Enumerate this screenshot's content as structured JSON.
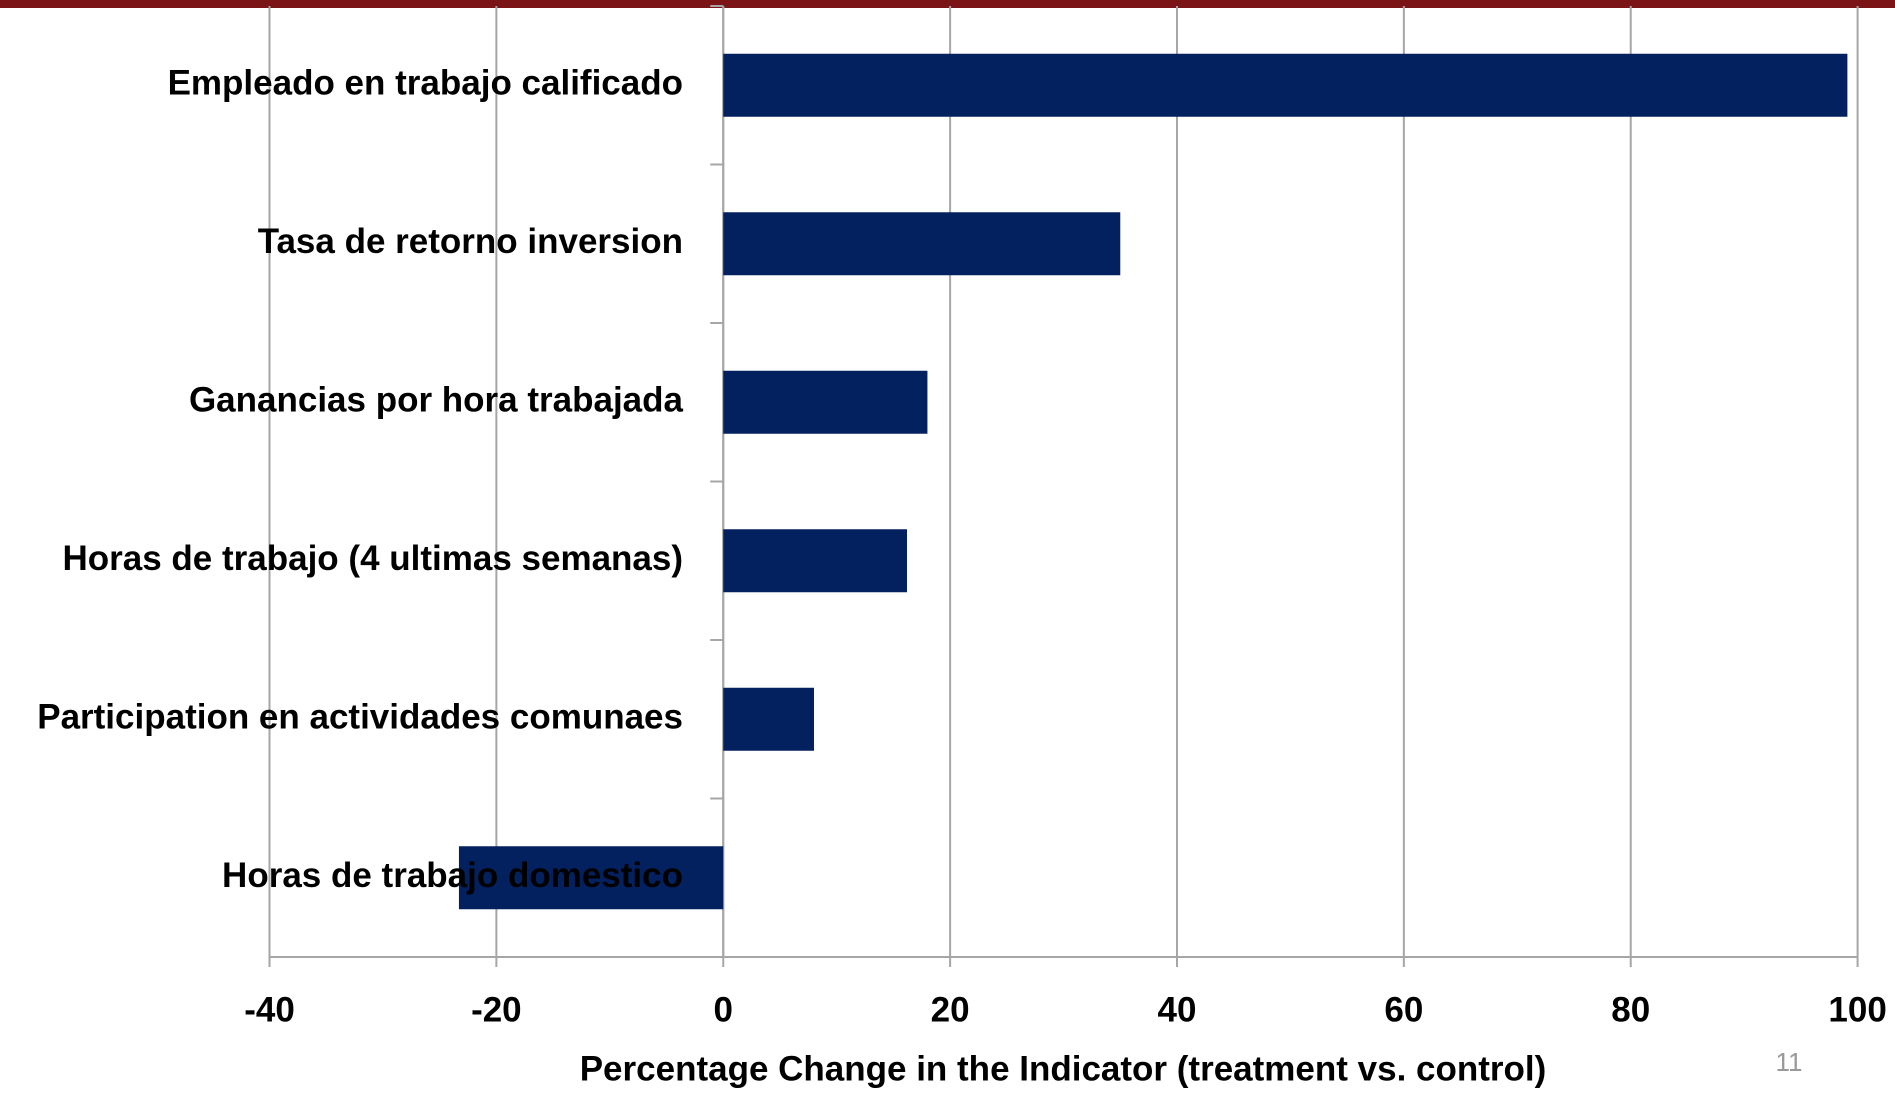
{
  "chart_data": {
    "type": "bar",
    "orientation": "horizontal",
    "categories": [
      "Empleado en trabajo calificado",
      "Tasa de retorno inversion",
      "Ganancias por hora trabajada",
      "Horas de trabajo (4 ultimas semanas)",
      "Participation en actividades comunaes",
      "Horas de trabajo domestico"
    ],
    "values": [
      99.1,
      35.0,
      18.0,
      16.2,
      8.0,
      -23.3
    ],
    "color": "#03215e",
    "xlim": [
      -40,
      100
    ],
    "xticks": [
      -40,
      -20,
      0,
      20,
      40,
      60,
      80,
      100
    ],
    "xlabel": "Percentage Change in the Indicator (treatment vs. control)",
    "grid": true
  },
  "page_number": "11"
}
